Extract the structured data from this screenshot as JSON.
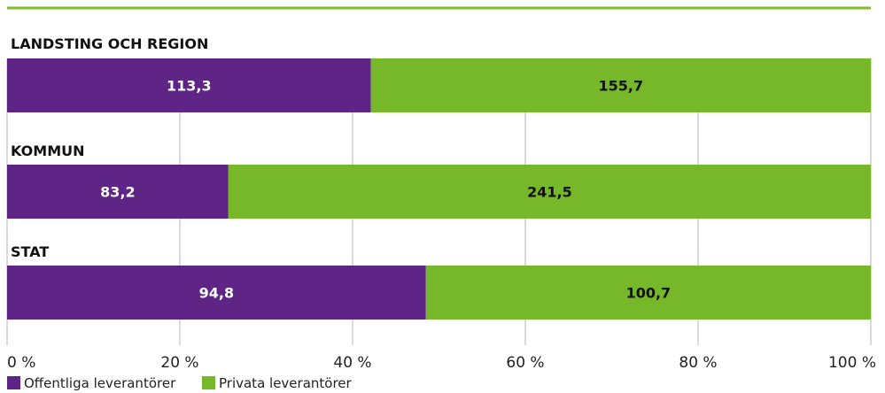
{
  "colors": {
    "public": "#5e2586",
    "private": "#77b82a",
    "rule": "#7cbf2c",
    "grid": "#b5b5b5",
    "private_label": "#111111",
    "public_label": "#ffffff"
  },
  "chart_data": {
    "type": "bar",
    "orientation": "horizontal",
    "stacked": true,
    "normalized": true,
    "categories": [
      "LANDSTING OCH REGION",
      "KOMMUN",
      "STAT"
    ],
    "series": [
      {
        "name": "Offentliga leverantörer",
        "values": [
          113.3,
          83.2,
          94.8
        ],
        "labels": [
          "113,3",
          "83,2",
          "94,8"
        ]
      },
      {
        "name": "Privata leverantörer",
        "values": [
          155.7,
          241.5,
          100.7
        ],
        "labels": [
          "155,7",
          "241,5",
          "100,7"
        ]
      }
    ],
    "xlim": [
      0,
      100
    ],
    "x_ticks": [
      "0 %",
      "20 %",
      "40 %",
      "60 %",
      "80 %",
      "100 %"
    ],
    "grid": true,
    "legend_position": "bottom-left"
  }
}
